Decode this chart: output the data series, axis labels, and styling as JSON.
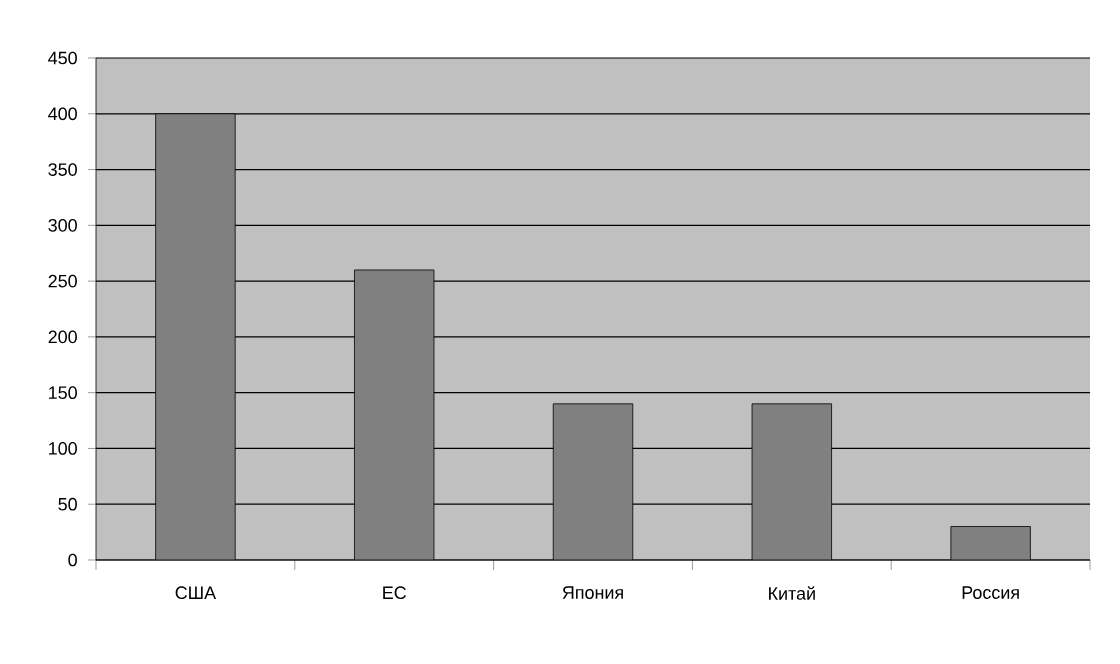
{
  "chart_data": {
    "type": "bar",
    "categories": [
      "США",
      "ЕС",
      "Япония",
      "Китай",
      "Россия"
    ],
    "values": [
      400,
      260,
      140,
      140,
      30
    ],
    "color": "#808080",
    "ylim": [
      0,
      450
    ],
    "yticks": [
      0,
      50,
      100,
      150,
      200,
      250,
      300,
      350,
      400,
      450
    ],
    "grid": "y"
  }
}
